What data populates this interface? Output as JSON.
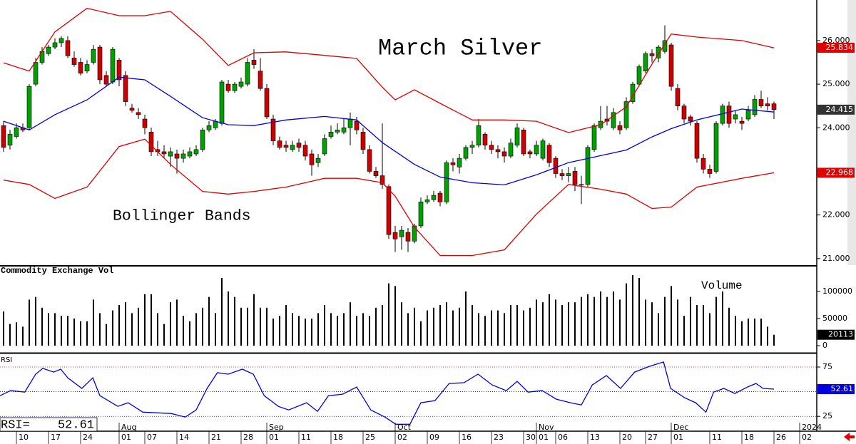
{
  "chart_data": [
    {
      "type": "candlestick",
      "title": "March Silver",
      "annotation": "Bollinger Bands",
      "xlim": [
        -0.556,
        126.667
      ],
      "ylim": [
        20.85,
        26.93
      ],
      "yticks": [
        {
          "value": 21,
          "label": "21.000"
        },
        {
          "value": 22,
          "label": "22.000"
        },
        {
          "value": 23,
          "label": "23.000"
        },
        {
          "value": 24,
          "label": "24.000"
        },
        {
          "value": 25,
          "label": "25.000"
        },
        {
          "value": 26,
          "label": "26.000"
        }
      ],
      "up_color": "#00a000",
      "down_color": "#cc0000",
      "close_box_color": "#333333",
      "open": [
        24.05,
        23.6,
        23.8,
        24.0,
        24.0,
        25.0,
        25.5,
        25.7,
        25.85,
        25.95,
        26.0,
        25.6,
        25.5,
        25.3,
        25.5,
        25.85,
        25.2,
        25.05,
        25.55,
        25.2,
        24.45,
        24.35,
        24.2,
        23.9,
        23.5,
        23.45,
        23.35,
        23.4,
        23.3,
        23.35,
        23.4,
        23.5,
        23.95,
        24.0,
        24.1,
        25.0,
        24.85,
        24.95,
        25.0,
        25.55,
        25.3,
        24.9,
        24.2,
        23.7,
        23.6,
        23.5,
        23.65,
        23.6,
        23.4,
        23.2,
        23.4,
        23.8,
        23.9,
        23.9,
        24.0,
        24.15,
        23.9,
        23.5,
        23.0,
        22.9,
        22.65,
        21.6,
        21.5,
        21.6,
        21.4,
        21.75,
        22.3,
        22.35,
        22.5,
        22.3,
        23.2,
        23.1,
        23.3,
        23.55,
        23.6,
        23.85,
        23.6,
        23.5,
        23.45,
        23.35,
        23.6,
        23.95,
        23.45,
        23.4,
        23.3,
        23.6,
        23.3,
        22.95,
        22.9,
        23.0,
        22.7,
        22.7,
        23.5,
        24.0,
        24.2,
        24.0,
        24.05,
        24.0,
        24.6,
        25.0,
        25.3,
        25.7,
        25.6,
        25.75,
        25.9,
        24.9,
        24.5,
        24.25,
        24.1,
        23.3,
        23.05,
        23.0,
        24.1,
        24.5,
        24.2,
        24.15,
        24.2,
        24.3,
        24.65,
        24.55,
        24.55
      ],
      "high": [
        24.15,
        23.95,
        24.1,
        24.1,
        25.0,
        25.6,
        25.85,
        25.9,
        26.05,
        26.1,
        26.1,
        25.75,
        25.6,
        25.55,
        25.9,
        25.9,
        25.3,
        25.85,
        25.6,
        25.3,
        24.55,
        24.45,
        24.3,
        24.0,
        23.7,
        23.6,
        23.55,
        23.5,
        23.5,
        23.55,
        23.6,
        24.0,
        24.15,
        24.2,
        25.1,
        25.1,
        25.05,
        25.15,
        25.6,
        25.8,
        25.6,
        25.0,
        24.3,
        23.8,
        23.7,
        23.7,
        23.75,
        23.7,
        23.5,
        23.4,
        23.85,
        24.05,
        24.1,
        24.2,
        24.35,
        24.25,
        24.0,
        23.6,
        23.1,
        24.1,
        22.7,
        21.75,
        21.75,
        21.7,
        21.8,
        22.4,
        22.45,
        22.55,
        22.55,
        23.25,
        23.3,
        23.4,
        23.6,
        23.7,
        24.2,
        23.9,
        23.7,
        23.6,
        23.55,
        23.75,
        24.1,
        24.0,
        23.5,
        23.7,
        23.75,
        23.65,
        23.35,
        23.05,
        23.1,
        23.1,
        22.9,
        23.6,
        24.1,
        24.5,
        24.5,
        24.45,
        24.15,
        24.7,
        25.05,
        25.45,
        25.75,
        25.8,
        25.9,
        26.35,
        25.95,
        25.0,
        24.55,
        24.3,
        24.15,
        23.4,
        23.15,
        24.15,
        24.55,
        24.6,
        24.4,
        24.25,
        24.5,
        24.75,
        24.85,
        24.7,
        24.6
      ],
      "low": [
        23.45,
        23.5,
        23.75,
        23.9,
        23.95,
        24.95,
        25.45,
        25.65,
        25.8,
        25.85,
        25.6,
        25.4,
        25.2,
        25.25,
        25.45,
        25.0,
        24.95,
        25.0,
        24.95,
        24.5,
        24.35,
        24.2,
        23.85,
        23.35,
        23.35,
        23.3,
        23.1,
        22.95,
        23.2,
        23.3,
        23.35,
        23.45,
        23.9,
        23.95,
        24.05,
        24.8,
        24.8,
        24.9,
        24.95,
        25.35,
        24.85,
        24.2,
        23.6,
        23.5,
        23.45,
        23.45,
        23.45,
        23.25,
        22.9,
        23.1,
        23.35,
        23.75,
        23.85,
        23.85,
        23.6,
        23.85,
        23.4,
        22.95,
        22.85,
        22.6,
        21.45,
        21.15,
        21.2,
        21.15,
        21.35,
        21.7,
        22.25,
        22.3,
        22.2,
        22.25,
        23.0,
        22.95,
        23.25,
        23.4,
        23.55,
        23.5,
        23.4,
        23.3,
        23.2,
        23.3,
        23.55,
        23.35,
        23.3,
        23.35,
        23.25,
        23.1,
        22.85,
        22.8,
        22.75,
        22.55,
        22.25,
        22.65,
        23.45,
        23.95,
        24.05,
        23.95,
        23.85,
        23.95,
        24.55,
        24.95,
        25.25,
        25.5,
        25.5,
        25.7,
        24.85,
        24.4,
        24.1,
        24.05,
        23.2,
        22.95,
        22.85,
        22.95,
        24.05,
        24.0,
        24.1,
        23.95,
        24.15,
        24.25,
        24.45,
        24.4,
        24.2
      ],
      "close": [
        23.55,
        23.85,
        24.0,
        23.95,
        24.95,
        25.5,
        25.75,
        25.85,
        25.95,
        26.05,
        25.65,
        25.45,
        25.25,
        25.45,
        25.8,
        25.1,
        25.0,
        25.8,
        25.1,
        24.6,
        24.4,
        24.3,
        24.0,
        23.45,
        23.45,
        23.4,
        23.45,
        23.3,
        23.4,
        23.45,
        23.5,
        23.95,
        24.05,
        24.15,
        25.05,
        24.85,
        25.0,
        25.05,
        25.5,
        25.45,
        24.9,
        24.25,
        23.7,
        23.55,
        23.55,
        23.6,
        23.55,
        23.35,
        23.15,
        23.3,
        23.75,
        23.9,
        23.95,
        24.0,
        24.2,
        23.95,
        23.5,
        23.0,
        22.9,
        22.7,
        21.55,
        21.45,
        21.65,
        21.4,
        21.75,
        22.3,
        22.35,
        22.45,
        22.3,
        23.2,
        23.15,
        23.3,
        23.55,
        23.6,
        24.05,
        23.6,
        23.5,
        23.45,
        23.35,
        23.65,
        24.0,
        23.4,
        23.4,
        23.6,
        23.7,
        23.2,
        22.95,
        22.9,
        22.95,
        22.7,
        22.7,
        23.55,
        24.05,
        24.15,
        24.15,
        24.35,
        23.95,
        24.6,
        25.0,
        25.4,
        25.7,
        25.65,
        25.85,
        26.0,
        24.95,
        24.5,
        24.2,
        24.15,
        23.3,
        23.05,
        22.95,
        24.1,
        24.5,
        24.1,
        24.3,
        24.1,
        24.4,
        24.65,
        24.5,
        24.5,
        24.415
      ],
      "lines_x": [
        0,
        4,
        8,
        13,
        18,
        22,
        26,
        31,
        35,
        39,
        44,
        50,
        55,
        59,
        61,
        64,
        68,
        73,
        78,
        83,
        88,
        93,
        97,
        101,
        104,
        108,
        115,
        120
      ],
      "lines": [
        {
          "color": "#e00000",
          "value_box": true,
          "values": [
            25.49,
            25.3,
            26.2,
            26.74,
            26.57,
            26.57,
            26.67,
            26.03,
            25.43,
            25.72,
            25.74,
            25.66,
            25.59,
            24.93,
            24.64,
            24.87,
            24.56,
            24.18,
            24.18,
            24.15,
            23.89,
            24.07,
            24.48,
            25.46,
            26.15,
            26.08,
            26.0,
            25.834
          ]
        },
        {
          "color": "#0000e0",
          "value_box": false,
          "values": [
            24.15,
            23.95,
            24.3,
            24.64,
            25.16,
            25.1,
            24.72,
            24.23,
            24.07,
            24.05,
            24.18,
            24.26,
            24.18,
            23.66,
            23.46,
            23.16,
            22.87,
            22.74,
            22.69,
            22.92,
            23.2,
            23.36,
            23.49,
            23.79,
            23.98,
            24.18,
            24.43,
            24.36
          ]
        },
        {
          "color": "#e00000",
          "value_box": true,
          "values": [
            22.8,
            22.7,
            22.38,
            22.64,
            23.57,
            23.74,
            23.16,
            22.54,
            22.48,
            22.54,
            22.64,
            22.84,
            22.84,
            22.74,
            22.43,
            21.72,
            21.07,
            21.07,
            21.2,
            22.02,
            22.7,
            22.59,
            22.48,
            22.15,
            22.18,
            22.64,
            22.84,
            22.968
          ]
        }
      ]
    },
    {
      "type": "bar",
      "title": "Commodity Exchange Vol",
      "annotation": "Volume",
      "color": "#000000",
      "xlim": [
        -0.556,
        126.667
      ],
      "ylim": [
        -6600,
        146000
      ],
      "yticks": [
        0,
        50000,
        100000
      ],
      "values": [
        63000,
        40000,
        43000,
        35000,
        85000,
        90000,
        70000,
        60000,
        60000,
        55000,
        55000,
        50000,
        45000,
        45000,
        85000,
        60000,
        40000,
        65000,
        75000,
        80000,
        60000,
        70000,
        95000,
        95000,
        60000,
        40000,
        80000,
        85000,
        55000,
        45000,
        60000,
        70000,
        90000,
        60000,
        125000,
        100000,
        90000,
        70000,
        70000,
        95000,
        70000,
        70000,
        50000,
        55000,
        75000,
        60000,
        55000,
        50000,
        50000,
        60000,
        75000,
        60000,
        55000,
        60000,
        80000,
        55000,
        60000,
        55000,
        70000,
        75000,
        115000,
        110000,
        80000,
        60000,
        70000,
        45000,
        65000,
        70000,
        75000,
        80000,
        65000,
        70000,
        100000,
        75000,
        60000,
        55000,
        65000,
        65000,
        60000,
        75000,
        75000,
        65000,
        70000,
        85000,
        80000,
        95000,
        85000,
        75000,
        80000,
        80000,
        90000,
        95000,
        90000,
        100000,
        90000,
        100000,
        85000,
        115000,
        130000,
        125000,
        85000,
        80000,
        60000,
        90000,
        110000,
        85000,
        55000,
        90000,
        75000,
        75000,
        60000,
        90000,
        100000,
        70000,
        55000,
        45000,
        50000,
        50000,
        50000,
        35000,
        20113
      ]
    },
    {
      "type": "line",
      "title": "RSI",
      "readout_label": "RSI=",
      "color": "#0000e0",
      "xlim": [
        -0.556,
        126.667
      ],
      "ylim": [
        10,
        88
      ],
      "yticks": [
        25,
        75
      ],
      "reference_lines": [
        {
          "value": 75,
          "color": "#e00000"
        },
        {
          "value": 50,
          "color": "#000000"
        },
        {
          "value": 25,
          "color": "#0000e0"
        }
      ],
      "x": [
        -0.556,
        1.1,
        3.3,
        5,
        6.1,
        7.8,
        8.9,
        10,
        12.2,
        13.9,
        15,
        17.8,
        19.4,
        21.7,
        26.1,
        28.3,
        30,
        31.7,
        33.3,
        35,
        37.2,
        38.9,
        40.6,
        42.8,
        44.4,
        47.2,
        48.9,
        50.6,
        52.8,
        55,
        57.2,
        59.4,
        61.1,
        63.3,
        65,
        67.2,
        69.4,
        71.7,
        73.9,
        76.1,
        78.3,
        80,
        81.7,
        83.9,
        86.1,
        88.3,
        90,
        91.7,
        93.9,
        96.1,
        98.3,
        100.6,
        102.8,
        103.9,
        106.1,
        107.8,
        109.4,
        110.6,
        112.2,
        113.9,
        116.1,
        117.2,
        118.3,
        120
      ],
      "values": [
        46.0,
        51.1,
        49.6,
        67.8,
        73.6,
        69.9,
        72.8,
        64.1,
        53.3,
        64.1,
        46.0,
        35.1,
        38.8,
        29.3,
        27.9,
        24.3,
        31.5,
        53.3,
        69.2,
        67.8,
        72.8,
        67.8,
        46.0,
        35.1,
        31.5,
        38.8,
        30.1,
        46.0,
        47.5,
        54.7,
        31.5,
        24.3,
        17.0,
        17.0,
        38.8,
        40.9,
        58.3,
        59.1,
        67.8,
        56.9,
        51.1,
        60.5,
        49.6,
        51.1,
        42.4,
        38.8,
        36.6,
        56.9,
        66.3,
        53.3,
        69.9,
        75.7,
        80.1,
        53.3,
        43.8,
        38.8,
        29.3,
        49.6,
        53.3,
        48.2,
        55.4,
        58.3,
        53.3,
        52.61
      ],
      "xticks": [
        {
          "value": 2,
          "label": "10"
        },
        {
          "value": 7,
          "label": "17"
        },
        {
          "value": 12,
          "label": "24"
        },
        {
          "value": 18,
          "label": "01"
        },
        {
          "value": 22,
          "label": "07"
        },
        {
          "value": 27,
          "label": "14"
        },
        {
          "value": 32,
          "label": "21"
        },
        {
          "value": 37,
          "label": "28"
        },
        {
          "value": 41,
          "label": "01"
        },
        {
          "value": 46,
          "label": "11"
        },
        {
          "value": 51,
          "label": "18"
        },
        {
          "value": 56,
          "label": "25"
        },
        {
          "value": 61,
          "label": "02"
        },
        {
          "value": 66,
          "label": "09"
        },
        {
          "value": 71,
          "label": "16"
        },
        {
          "value": 76,
          "label": "23"
        },
        {
          "value": 81,
          "label": "30"
        },
        {
          "value": 83,
          "label": "01"
        },
        {
          "value": 86,
          "label": "06"
        },
        {
          "value": 91,
          "label": "13"
        },
        {
          "value": 96,
          "label": "20"
        },
        {
          "value": 100,
          "label": "27"
        },
        {
          "value": 104,
          "label": "01"
        },
        {
          "value": 110,
          "label": "11"
        },
        {
          "value": 115,
          "label": "18"
        },
        {
          "value": 120,
          "label": "26"
        },
        {
          "value": 124,
          "label": "02"
        }
      ],
      "month_ticks": [
        {
          "value": 18,
          "label": "Aug"
        },
        {
          "value": 41,
          "label": "Sep"
        },
        {
          "value": 61,
          "label": "Oct"
        },
        {
          "value": 83,
          "label": "Nov"
        },
        {
          "value": 104,
          "label": "Dec"
        },
        {
          "value": 124,
          "label": "2024"
        }
      ]
    }
  ]
}
